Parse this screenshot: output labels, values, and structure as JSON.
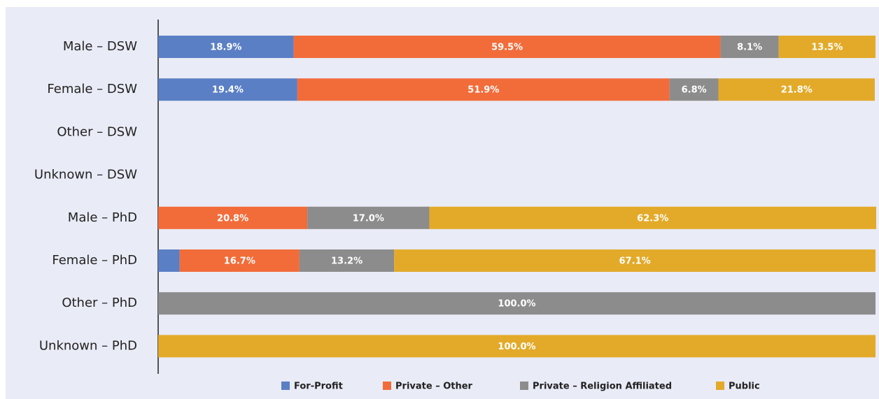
{
  "chart_data": {
    "type": "stacked-bar-horizontal",
    "categories": [
      "Male – DSW",
      "Female – DSW",
      "Other – DSW",
      "Unknown – DSW",
      "Male – PhD",
      "Female – PhD",
      "Other – PhD",
      "Unknown – PhD"
    ],
    "xlim": [
      0,
      100
    ],
    "legend": "bottom",
    "series": [
      {
        "name": "For-Profit",
        "color": "#5a7fc5",
        "values": [
          18.9,
          19.4,
          null,
          null,
          null,
          3.0,
          null,
          null
        ],
        "value_labels": [
          "18.9%",
          "19.4%",
          null,
          null,
          null,
          null,
          null,
          null
        ]
      },
      {
        "name": "Private – Other",
        "color": "#f26c3a",
        "values": [
          59.5,
          51.9,
          null,
          null,
          20.8,
          16.7,
          null,
          null
        ],
        "value_labels": [
          "59.5%",
          "51.9%",
          null,
          null,
          "20.8%",
          "16.7%",
          null,
          null
        ]
      },
      {
        "name": "Private – Religion Affiliated",
        "color": "#8c8c8c",
        "values": [
          8.1,
          6.8,
          null,
          null,
          17.0,
          13.2,
          100.0,
          null
        ],
        "value_labels": [
          "8.1%",
          "6.8%",
          null,
          null,
          "17.0%",
          "13.2%",
          "100.0%",
          null
        ]
      },
      {
        "name": "Public",
        "color": "#e3aa29",
        "values": [
          13.5,
          21.8,
          null,
          null,
          62.3,
          67.1,
          null,
          100.0
        ],
        "value_labels": [
          "13.5%",
          "21.8%",
          null,
          null,
          "62.3%",
          "67.1%",
          null,
          "100.0%"
        ]
      }
    ]
  }
}
